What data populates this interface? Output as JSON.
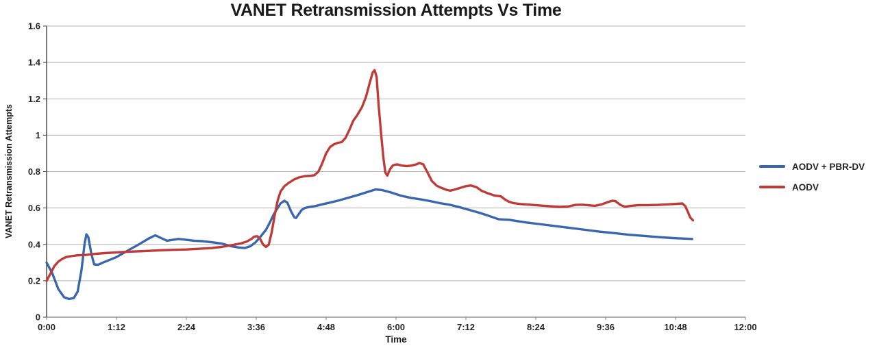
{
  "chart_data": {
    "type": "line",
    "title": "VANET Retransmission Attempts Vs Time",
    "xlabel": "Time",
    "ylabel": "VANET Retransmission Attempts",
    "grid": "horizontal",
    "legend_position": "right-middle",
    "x_axis": {
      "tick_labels": [
        "0:00",
        "1:12",
        "2:24",
        "3:36",
        "4:48",
        "6:00",
        "7:12",
        "8:24",
        "9:36",
        "10:48",
        "12:00"
      ],
      "tick_minutes": [
        0,
        72,
        144,
        216,
        288,
        360,
        432,
        504,
        576,
        648,
        720
      ],
      "range_minutes": [
        0,
        720
      ]
    },
    "y_axis": {
      "tick_labels": [
        "0",
        "0.2",
        "0.4",
        "0.6",
        "0.8",
        "1",
        "1.2",
        "1.4",
        "1.6"
      ],
      "tick_values": [
        0,
        0.2,
        0.4,
        0.6,
        0.8,
        1,
        1.2,
        1.4,
        1.6
      ],
      "range": [
        0,
        1.6
      ]
    },
    "colors": {
      "grid": "#b3b3b3",
      "x_axis_line": "#7f7f7f",
      "y_axis_line": "#404040",
      "title_text": "#1a1a1a",
      "tick_text": "#262626"
    },
    "series": [
      {
        "name": "AODV + PBR-DV",
        "color": "#3a66ae",
        "points_min_value": [
          [
            0,
            0.3
          ],
          [
            6,
            0.24
          ],
          [
            12,
            0.155
          ],
          [
            18,
            0.11
          ],
          [
            23,
            0.1
          ],
          [
            28,
            0.105
          ],
          [
            32,
            0.14
          ],
          [
            36,
            0.26
          ],
          [
            39,
            0.4
          ],
          [
            41,
            0.455
          ],
          [
            43,
            0.44
          ],
          [
            46,
            0.35
          ],
          [
            49,
            0.29
          ],
          [
            53,
            0.288
          ],
          [
            58,
            0.3
          ],
          [
            65,
            0.315
          ],
          [
            72,
            0.33
          ],
          [
            85,
            0.37
          ],
          [
            95,
            0.4
          ],
          [
            105,
            0.432
          ],
          [
            112,
            0.45
          ],
          [
            118,
            0.435
          ],
          [
            124,
            0.42
          ],
          [
            130,
            0.425
          ],
          [
            136,
            0.43
          ],
          [
            144,
            0.425
          ],
          [
            152,
            0.42
          ],
          [
            160,
            0.418
          ],
          [
            170,
            0.412
          ],
          [
            180,
            0.405
          ],
          [
            190,
            0.39
          ],
          [
            198,
            0.383
          ],
          [
            204,
            0.38
          ],
          [
            210,
            0.39
          ],
          [
            215,
            0.41
          ],
          [
            220,
            0.44
          ],
          [
            226,
            0.48
          ],
          [
            230,
            0.52
          ],
          [
            234,
            0.565
          ],
          [
            238,
            0.6
          ],
          [
            241,
            0.625
          ],
          [
            245,
            0.64
          ],
          [
            248,
            0.63
          ],
          [
            252,
            0.58
          ],
          [
            255,
            0.55
          ],
          [
            257,
            0.545
          ],
          [
            260,
            0.568
          ],
          [
            263,
            0.59
          ],
          [
            266,
            0.6
          ],
          [
            270,
            0.605
          ],
          [
            276,
            0.61
          ],
          [
            284,
            0.62
          ],
          [
            292,
            0.63
          ],
          [
            300,
            0.64
          ],
          [
            310,
            0.655
          ],
          [
            320,
            0.67
          ],
          [
            330,
            0.687
          ],
          [
            339,
            0.702
          ],
          [
            346,
            0.698
          ],
          [
            355,
            0.685
          ],
          [
            365,
            0.668
          ],
          [
            375,
            0.656
          ],
          [
            385,
            0.648
          ],
          [
            395,
            0.638
          ],
          [
            405,
            0.627
          ],
          [
            416,
            0.617
          ],
          [
            425,
            0.605
          ],
          [
            435,
            0.59
          ],
          [
            445,
            0.575
          ],
          [
            455,
            0.558
          ],
          [
            462,
            0.545
          ],
          [
            466,
            0.538
          ],
          [
            472,
            0.536
          ],
          [
            477,
            0.535
          ],
          [
            485,
            0.528
          ],
          [
            495,
            0.52
          ],
          [
            510,
            0.51
          ],
          [
            525,
            0.5
          ],
          [
            540,
            0.49
          ],
          [
            555,
            0.48
          ],
          [
            570,
            0.47
          ],
          [
            585,
            0.462
          ],
          [
            600,
            0.453
          ],
          [
            615,
            0.447
          ],
          [
            630,
            0.44
          ],
          [
            645,
            0.435
          ],
          [
            657,
            0.432
          ],
          [
            665,
            0.43
          ]
        ]
      },
      {
        "name": "AODV",
        "color": "#be3b38",
        "points_min_value": [
          [
            0,
            0.2
          ],
          [
            4,
            0.24
          ],
          [
            8,
            0.28
          ],
          [
            12,
            0.305
          ],
          [
            16,
            0.32
          ],
          [
            20,
            0.33
          ],
          [
            25,
            0.335
          ],
          [
            32,
            0.34
          ],
          [
            40,
            0.342
          ],
          [
            50,
            0.348
          ],
          [
            60,
            0.352
          ],
          [
            72,
            0.356
          ],
          [
            85,
            0.36
          ],
          [
            100,
            0.363
          ],
          [
            115,
            0.367
          ],
          [
            130,
            0.37
          ],
          [
            144,
            0.372
          ],
          [
            158,
            0.376
          ],
          [
            170,
            0.38
          ],
          [
            180,
            0.386
          ],
          [
            190,
            0.395
          ],
          [
            200,
            0.405
          ],
          [
            206,
            0.415
          ],
          [
            211,
            0.43
          ],
          [
            214,
            0.443
          ],
          [
            217,
            0.445
          ],
          [
            220,
            0.43
          ],
          [
            223,
            0.4
          ],
          [
            226,
            0.386
          ],
          [
            229,
            0.4
          ],
          [
            232,
            0.47
          ],
          [
            235,
            0.56
          ],
          [
            238,
            0.64
          ],
          [
            241,
            0.69
          ],
          [
            245,
            0.72
          ],
          [
            250,
            0.74
          ],
          [
            255,
            0.757
          ],
          [
            260,
            0.768
          ],
          [
            266,
            0.775
          ],
          [
            272,
            0.777
          ],
          [
            276,
            0.78
          ],
          [
            280,
            0.8
          ],
          [
            284,
            0.845
          ],
          [
            288,
            0.9
          ],
          [
            292,
            0.935
          ],
          [
            296,
            0.95
          ],
          [
            300,
            0.958
          ],
          [
            304,
            0.962
          ],
          [
            308,
            0.985
          ],
          [
            312,
            1.03
          ],
          [
            316,
            1.08
          ],
          [
            320,
            1.11
          ],
          [
            325,
            1.155
          ],
          [
            329,
            1.21
          ],
          [
            333,
            1.29
          ],
          [
            336,
            1.345
          ],
          [
            338,
            1.357
          ],
          [
            340,
            1.32
          ],
          [
            342,
            1.17
          ],
          [
            345,
            0.985
          ],
          [
            347,
            0.875
          ],
          [
            349,
            0.795
          ],
          [
            351,
            0.778
          ],
          [
            354,
            0.815
          ],
          [
            357,
            0.835
          ],
          [
            361,
            0.84
          ],
          [
            366,
            0.833
          ],
          [
            371,
            0.83
          ],
          [
            376,
            0.833
          ],
          [
            381,
            0.84
          ],
          [
            384,
            0.847
          ],
          [
            388,
            0.84
          ],
          [
            392,
            0.8
          ],
          [
            397,
            0.748
          ],
          [
            402,
            0.722
          ],
          [
            407,
            0.71
          ],
          [
            412,
            0.7
          ],
          [
            416,
            0.695
          ],
          [
            421,
            0.702
          ],
          [
            427,
            0.712
          ],
          [
            432,
            0.72
          ],
          [
            437,
            0.724
          ],
          [
            443,
            0.714
          ],
          [
            448,
            0.695
          ],
          [
            455,
            0.68
          ],
          [
            462,
            0.668
          ],
          [
            468,
            0.664
          ],
          [
            472,
            0.648
          ],
          [
            476,
            0.635
          ],
          [
            481,
            0.627
          ],
          [
            488,
            0.622
          ],
          [
            498,
            0.618
          ],
          [
            508,
            0.614
          ],
          [
            518,
            0.61
          ],
          [
            528,
            0.606
          ],
          [
            537,
            0.608
          ],
          [
            545,
            0.617
          ],
          [
            552,
            0.618
          ],
          [
            558,
            0.615
          ],
          [
            565,
            0.612
          ],
          [
            572,
            0.62
          ],
          [
            578,
            0.632
          ],
          [
            583,
            0.64
          ],
          [
            586,
            0.638
          ],
          [
            591,
            0.617
          ],
          [
            596,
            0.607
          ],
          [
            602,
            0.612
          ],
          [
            610,
            0.616
          ],
          [
            620,
            0.616
          ],
          [
            630,
            0.617
          ],
          [
            640,
            0.62
          ],
          [
            650,
            0.623
          ],
          [
            655,
            0.625
          ],
          [
            658,
            0.61
          ],
          [
            661,
            0.575
          ],
          [
            663,
            0.548
          ],
          [
            666,
            0.532
          ]
        ]
      }
    ]
  }
}
